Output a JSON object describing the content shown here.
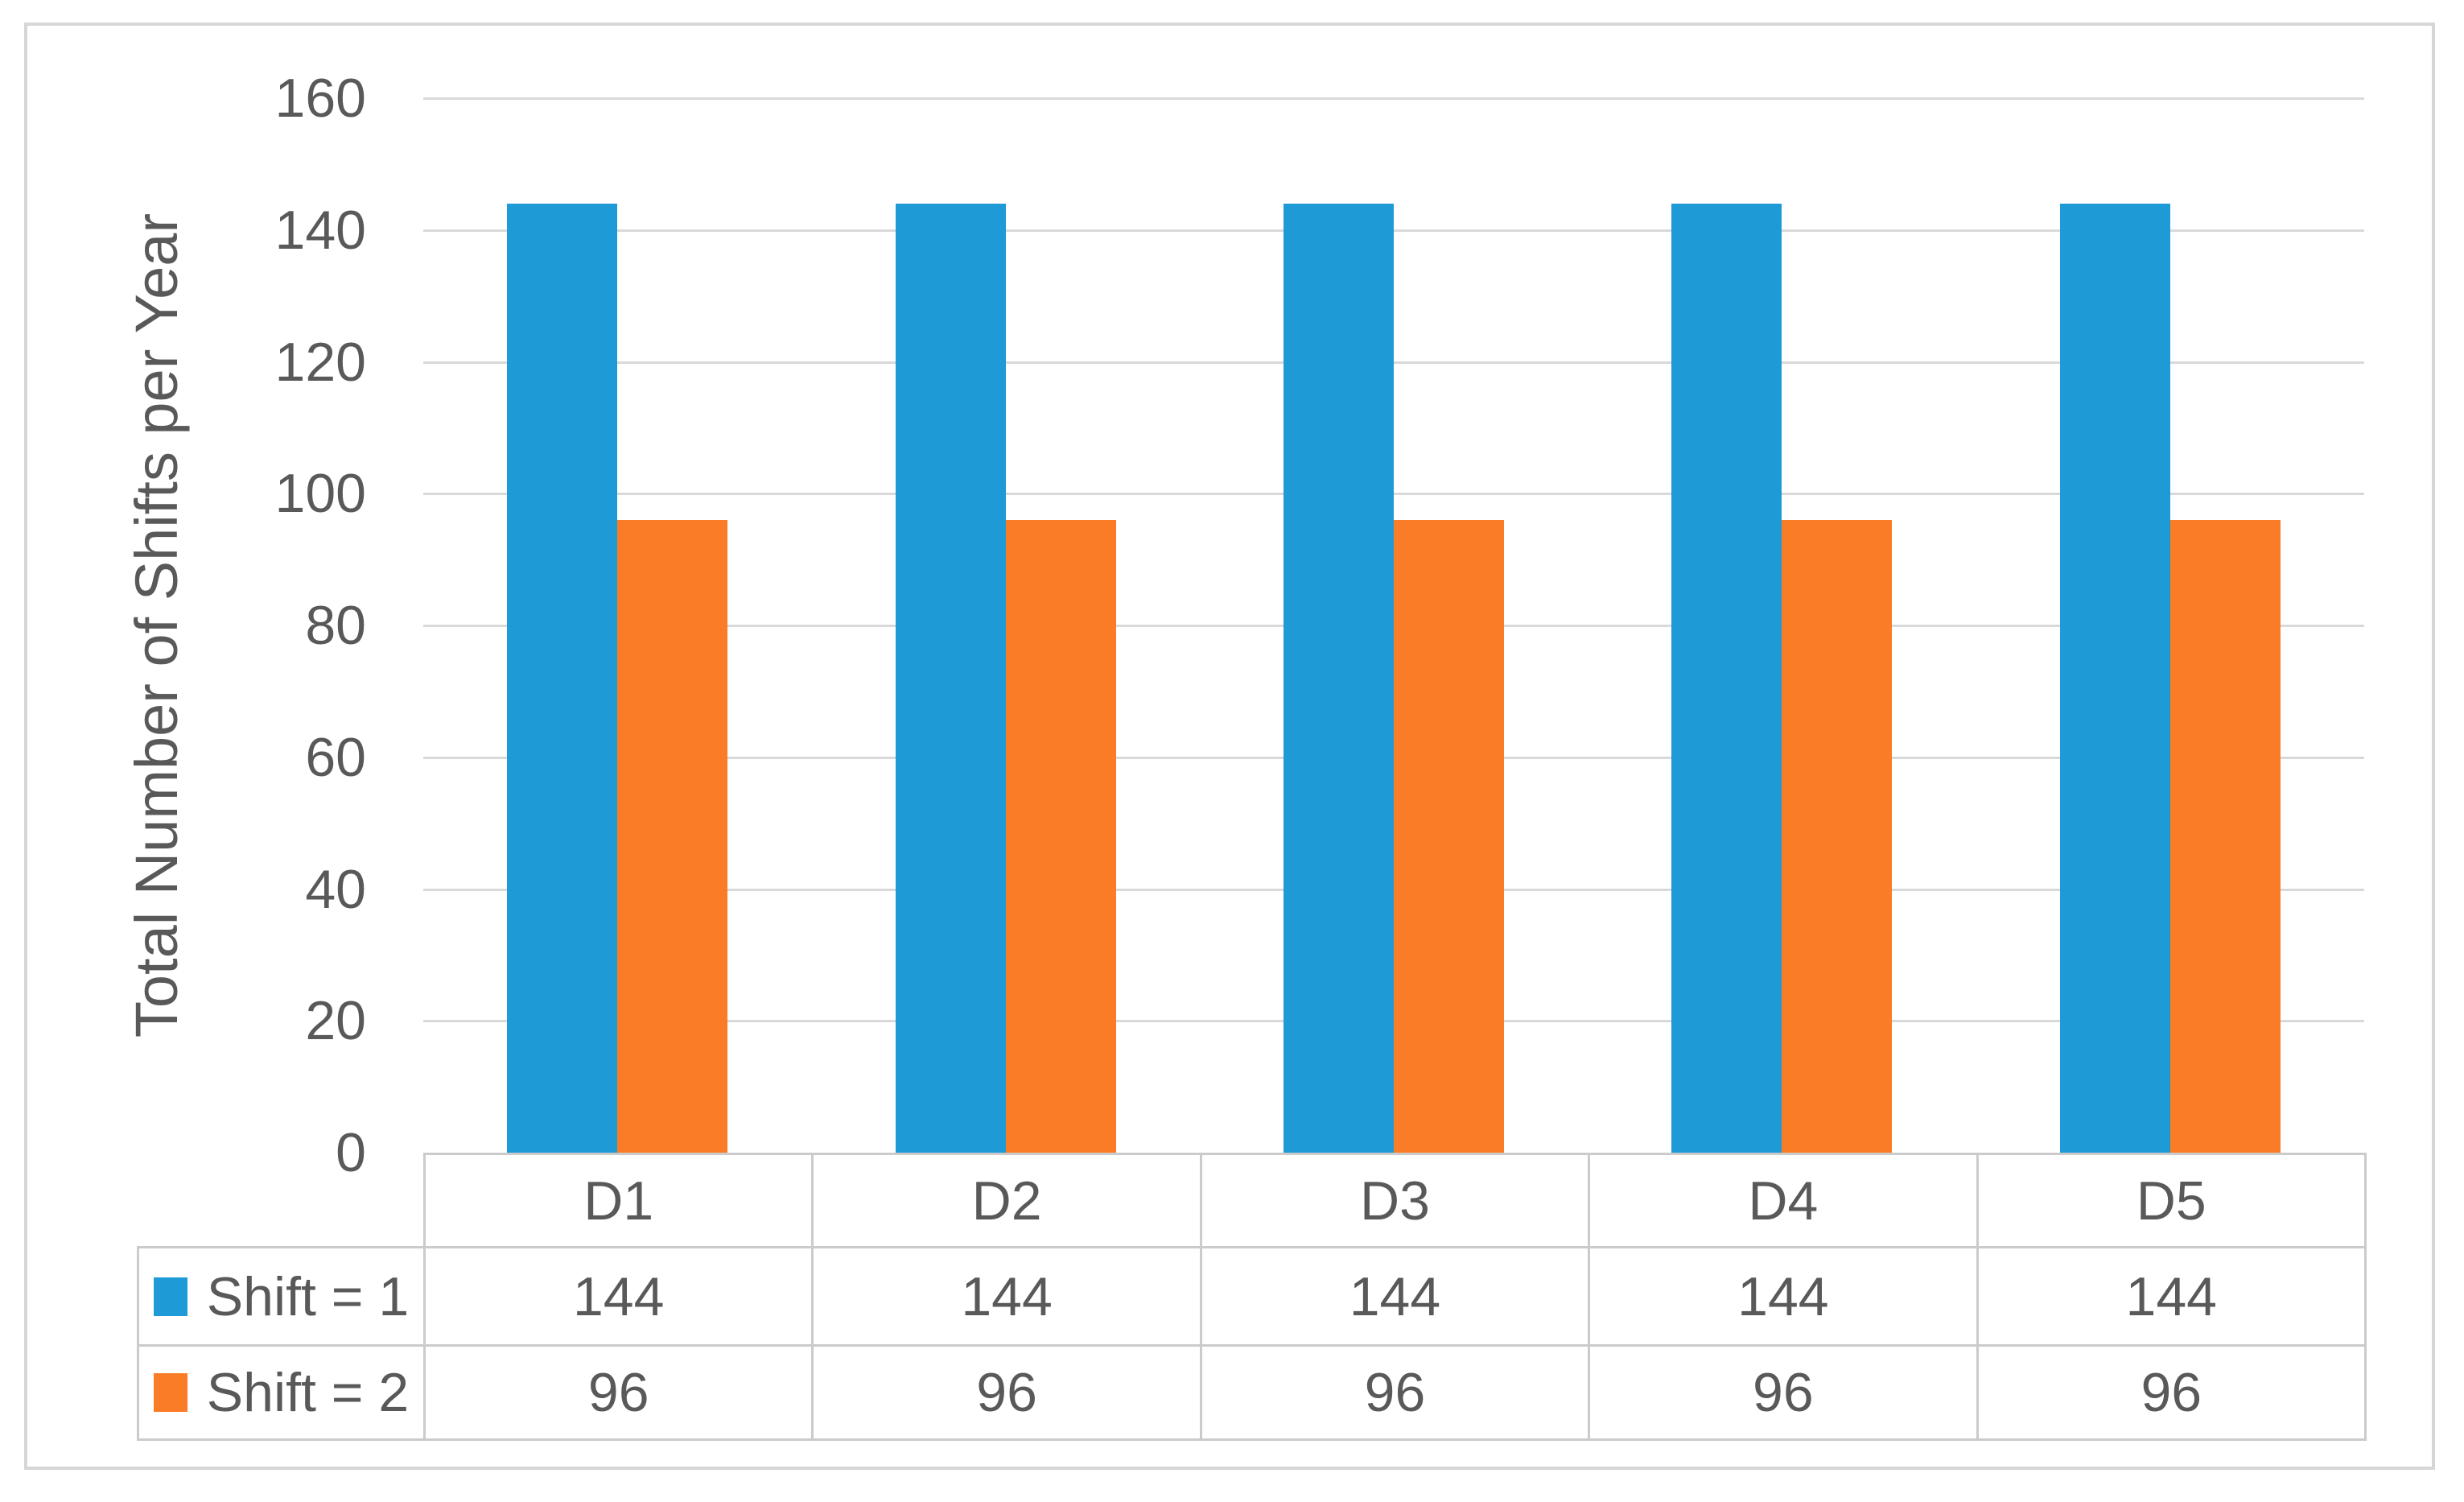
{
  "chart_data": {
    "type": "bar",
    "title": "",
    "xlabel": "",
    "ylabel": "Total Number of Shifts per Year",
    "categories": [
      "D1",
      "D2",
      "D3",
      "D4",
      "D5"
    ],
    "series": [
      {
        "name": "Shift = 1",
        "color": "#1e9bd7",
        "values": [
          144,
          144,
          144,
          144,
          144
        ]
      },
      {
        "name": "Shift = 2",
        "color": "#fb7c26",
        "values": [
          96,
          96,
          96,
          96,
          96
        ]
      }
    ],
    "ylim": [
      0,
      160
    ],
    "yticks": [
      0,
      20,
      40,
      60,
      80,
      100,
      120,
      140,
      160
    ],
    "grid": "horizontal",
    "legend_position": "data-table-left",
    "data_table_shown": true
  },
  "colors": {
    "plot_background": "#ffffff",
    "gridline": "#d9d9d9",
    "chart_border": "#d6d6d6",
    "table_border": "#cbcbcb",
    "text": "#595959",
    "series_blue": "#1e9bd7",
    "series_orange": "#fb7c26"
  }
}
